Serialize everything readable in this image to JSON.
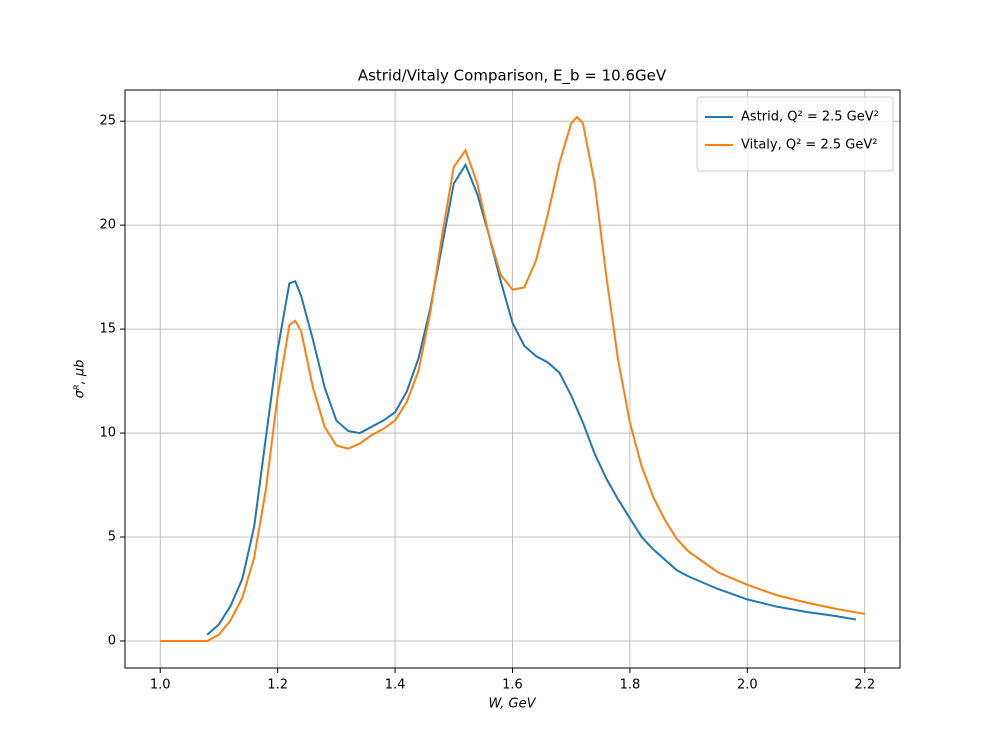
{
  "chart_data": {
    "type": "line",
    "title": "Astrid/Vitaly Comparison, E_b = 10.6GeV",
    "x_label": "W, GeV",
    "y_label": "σᴿ, μb",
    "xlim": [
      0.94,
      2.26
    ],
    "ylim": [
      -1.3,
      26.5
    ],
    "xticks": [
      {
        "value": 1.0,
        "label": "1.0"
      },
      {
        "value": 1.2,
        "label": "1.2"
      },
      {
        "value": 1.4,
        "label": "1.4"
      },
      {
        "value": 1.6,
        "label": "1.6"
      },
      {
        "value": 1.8,
        "label": "1.8"
      },
      {
        "value": 2.0,
        "label": "2.0"
      },
      {
        "value": 2.2,
        "label": "2.2"
      }
    ],
    "yticks": [
      0,
      5,
      10,
      15,
      20,
      25
    ],
    "grid": true,
    "legend": "upper right",
    "series": [
      {
        "name": "Astrid, Q² = 2.5 GeV²",
        "color": "#1f77b4",
        "x": [
          1.08,
          1.1,
          1.12,
          1.14,
          1.16,
          1.18,
          1.2,
          1.22,
          1.23,
          1.24,
          1.26,
          1.28,
          1.3,
          1.32,
          1.34,
          1.36,
          1.38,
          1.4,
          1.42,
          1.44,
          1.46,
          1.48,
          1.5,
          1.52,
          1.54,
          1.56,
          1.58,
          1.6,
          1.62,
          1.64,
          1.66,
          1.68,
          1.7,
          1.72,
          1.74,
          1.76,
          1.78,
          1.8,
          1.82,
          1.84,
          1.86,
          1.88,
          1.9,
          1.95,
          2.0,
          2.05,
          2.1,
          2.15,
          2.185
        ],
        "values": [
          0.3,
          0.8,
          1.7,
          3.0,
          5.5,
          9.8,
          14.0,
          17.2,
          17.3,
          16.6,
          14.5,
          12.2,
          10.6,
          10.1,
          10.0,
          10.3,
          10.6,
          11.0,
          12.0,
          13.6,
          16.0,
          19.0,
          22.0,
          22.9,
          21.5,
          19.5,
          17.3,
          15.3,
          14.2,
          13.7,
          13.4,
          12.9,
          11.8,
          10.5,
          9.0,
          7.8,
          6.8,
          5.9,
          5.0,
          4.4,
          3.9,
          3.4,
          3.1,
          2.5,
          2.0,
          1.65,
          1.4,
          1.2,
          1.03
        ]
      },
      {
        "name": "Vitaly, Q² = 2.5 GeV²",
        "color": "#ff7f0e",
        "x": [
          1.0,
          1.08,
          1.1,
          1.12,
          1.14,
          1.16,
          1.18,
          1.2,
          1.22,
          1.23,
          1.24,
          1.26,
          1.28,
          1.3,
          1.32,
          1.34,
          1.36,
          1.38,
          1.4,
          1.42,
          1.44,
          1.46,
          1.48,
          1.5,
          1.52,
          1.54,
          1.56,
          1.58,
          1.6,
          1.62,
          1.64,
          1.66,
          1.68,
          1.7,
          1.71,
          1.72,
          1.74,
          1.76,
          1.78,
          1.8,
          1.82,
          1.84,
          1.86,
          1.88,
          1.9,
          1.95,
          2.0,
          2.05,
          2.1,
          2.15,
          2.2
        ],
        "values": [
          0,
          0,
          0.3,
          1.0,
          2.1,
          4.0,
          7.3,
          11.8,
          15.2,
          15.4,
          14.9,
          12.2,
          10.3,
          9.4,
          9.25,
          9.5,
          9.9,
          10.2,
          10.6,
          11.5,
          13.0,
          15.8,
          19.5,
          22.8,
          23.6,
          22.0,
          19.5,
          17.6,
          16.9,
          17.0,
          18.3,
          20.5,
          23.0,
          24.9,
          25.2,
          24.9,
          22.0,
          17.5,
          13.5,
          10.5,
          8.4,
          6.9,
          5.8,
          4.9,
          4.3,
          3.3,
          2.7,
          2.2,
          1.85,
          1.55,
          1.3
        ]
      }
    ]
  }
}
